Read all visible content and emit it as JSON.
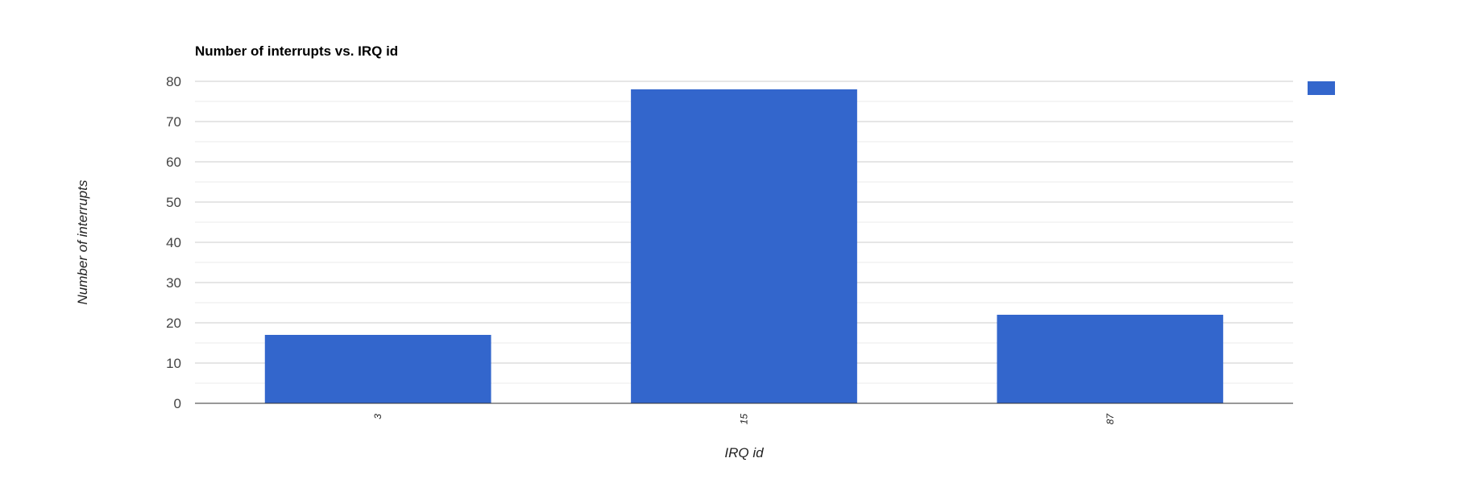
{
  "chart_data": {
    "type": "bar",
    "title": "Number of interrupts vs. IRQ id",
    "xlabel": "IRQ id",
    "ylabel": "Number of interrupts",
    "categories": [
      "3",
      "15",
      "87"
    ],
    "values": [
      17,
      78,
      22
    ],
    "ylim": [
      0,
      80
    ],
    "yticks": [
      "0",
      "10",
      "20",
      "30",
      "40",
      "50",
      "60",
      "70",
      "80"
    ],
    "grid": true,
    "legend": {
      "position": "right",
      "entries": [
        ""
      ]
    },
    "colors": {
      "bar": "#3366cc"
    }
  }
}
